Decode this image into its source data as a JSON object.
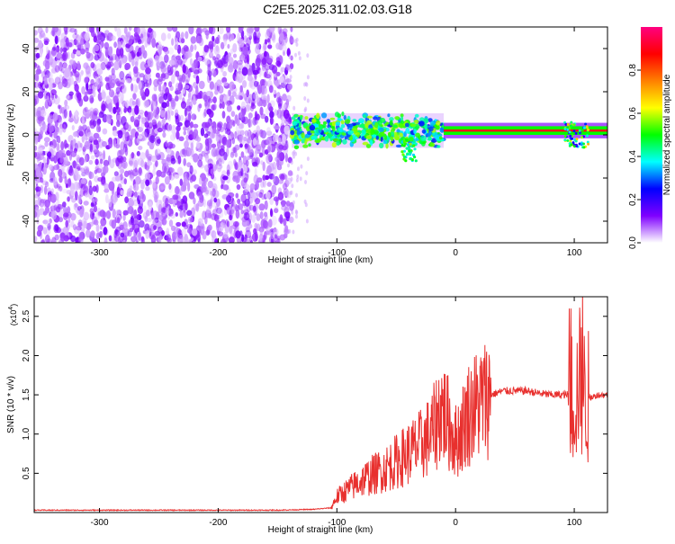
{
  "title": "C2E5.2025.311.02.03.G18",
  "chart_data": [
    {
      "type": "heatmap",
      "xlabel": "Height of straight line (km)",
      "ylabel": "Frequency (Hz)",
      "xlim": [
        -355,
        128
      ],
      "ylim": [
        -50,
        50
      ],
      "xticks": [
        -300,
        -200,
        -100,
        0,
        100
      ],
      "xtick_labels": [
        "-300",
        "-200",
        "-100",
        "0",
        "100"
      ],
      "yticks": [
        -40,
        -20,
        0,
        20,
        40
      ],
      "ytick_labels": [
        "-40",
        "-20",
        "0",
        "20",
        "40"
      ],
      "colorbar": {
        "label": "Normalized spectral amplitude",
        "range": [
          0.0,
          1.0
        ],
        "ticks": [
          0.0,
          0.2,
          0.4,
          0.6,
          0.8
        ],
        "tick_labels": [
          "0.0",
          "0.2",
          "0.4",
          "0.6",
          "0.8"
        ],
        "colors": [
          "#ffffff",
          "#7f00ff",
          "#0000ff",
          "#00ffff",
          "#00ff00",
          "#ffff00",
          "#ff8000",
          "#ff0000",
          "#ff0080"
        ]
      },
      "features": [
        {
          "x_range": [
            -355,
            -138
          ],
          "y_range": [
            -50,
            50
          ],
          "amplitude": 0.1
        },
        {
          "x_range": [
            -138,
            -10
          ],
          "y_center": 2,
          "y_halfwidth": 8,
          "amplitude": 0.45
        },
        {
          "x_range": [
            -10,
            128
          ],
          "y_center": 2,
          "y_halfwidth": 2,
          "amplitude": 0.9
        }
      ]
    },
    {
      "type": "line",
      "xlabel": "Height of straight line (km)",
      "ylabel": "SNR (10 * v/v)",
      "y_scale_label": "(x10",
      "y_scale_exp": "4",
      "y_scale_close": ")",
      "xlim": [
        -355,
        128
      ],
      "ylim": [
        0,
        2.75
      ],
      "xticks": [
        -300,
        -200,
        -100,
        0,
        100
      ],
      "xtick_labels": [
        "-300",
        "-200",
        "-100",
        "0",
        "100"
      ],
      "yticks": [
        0.5,
        1.0,
        1.5,
        2.0,
        2.5
      ],
      "ytick_labels": [
        "0.5",
        "1.0",
        "1.5",
        "2.0",
        "2.5"
      ],
      "color": "#e8302e",
      "series": [
        {
          "x": [
            -355,
            -300,
            -250,
            -200,
            -150,
            -120,
            -105,
            -100,
            -90,
            -80,
            -70,
            -60,
            -50,
            -40,
            -30,
            -20,
            -15,
            -12,
            -8,
            -5,
            0,
            5,
            10,
            20,
            30,
            40,
            50,
            60,
            70,
            80,
            90,
            98,
            102,
            106,
            108,
            112,
            120,
            128
          ],
          "y": [
            0.03,
            0.03,
            0.03,
            0.03,
            0.03,
            0.04,
            0.06,
            0.2,
            0.3,
            0.4,
            0.48,
            0.55,
            0.65,
            0.75,
            0.85,
            1.0,
            1.2,
            1.35,
            1.2,
            1.1,
            0.9,
            1.05,
            1.25,
            1.4,
            1.5,
            1.55,
            1.55,
            1.55,
            1.52,
            1.5,
            1.5,
            1.5,
            1.5,
            1.9,
            1.5,
            1.45,
            1.5,
            1.5
          ]
        }
      ]
    }
  ]
}
